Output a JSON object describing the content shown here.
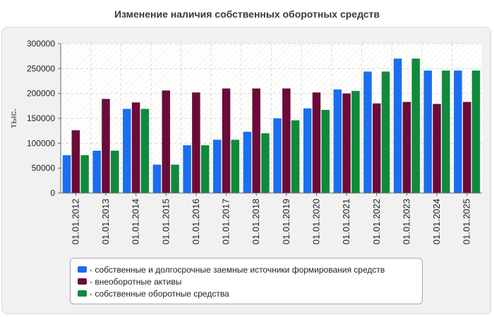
{
  "chart_data": {
    "type": "bar",
    "title": "Изменение наличия собственных оборотных средств",
    "ylabel": "тыс.",
    "xlabel": "",
    "ylim": [
      0,
      300000
    ],
    "yticks": [
      0,
      50000,
      100000,
      150000,
      200000,
      250000,
      300000
    ],
    "ytick_labels": [
      "0",
      "50000",
      "100000",
      "150000",
      "200000",
      "250000",
      "300000"
    ],
    "grid": true,
    "legend_position": "bottom",
    "categories": [
      "01.01.2012",
      "01.01.2013",
      "01.01.2014",
      "01.01.2015",
      "01.01.2016",
      "01.01.2017",
      "01.01.2018",
      "01.01.2019",
      "01.01.2020",
      "01.01.2021",
      "01.01.2022",
      "01.01.2023",
      "01.01.2024",
      "01.01.2025"
    ],
    "series": [
      {
        "name": "- собственные и долгосрочные заемные источники формирования средств",
        "color": "#1a6ef0",
        "values": [
          76000,
          85000,
          169000,
          57000,
          96000,
          107000,
          123000,
          150000,
          170000,
          208000,
          244000,
          270000,
          246000,
          246000
        ]
      },
      {
        "name": "- внеоборотные активы",
        "color": "#6b0b3a",
        "values": [
          126000,
          189000,
          182000,
          206000,
          202000,
          210000,
          210000,
          210000,
          202000,
          200000,
          180000,
          183000,
          179000,
          183000
        ]
      },
      {
        "name": "- собственные оборотные средства",
        "color": "#108a3c",
        "values": [
          76000,
          85000,
          169000,
          57000,
          96000,
          107000,
          120000,
          146000,
          167000,
          205000,
          244000,
          270000,
          246000,
          246000
        ]
      }
    ]
  }
}
